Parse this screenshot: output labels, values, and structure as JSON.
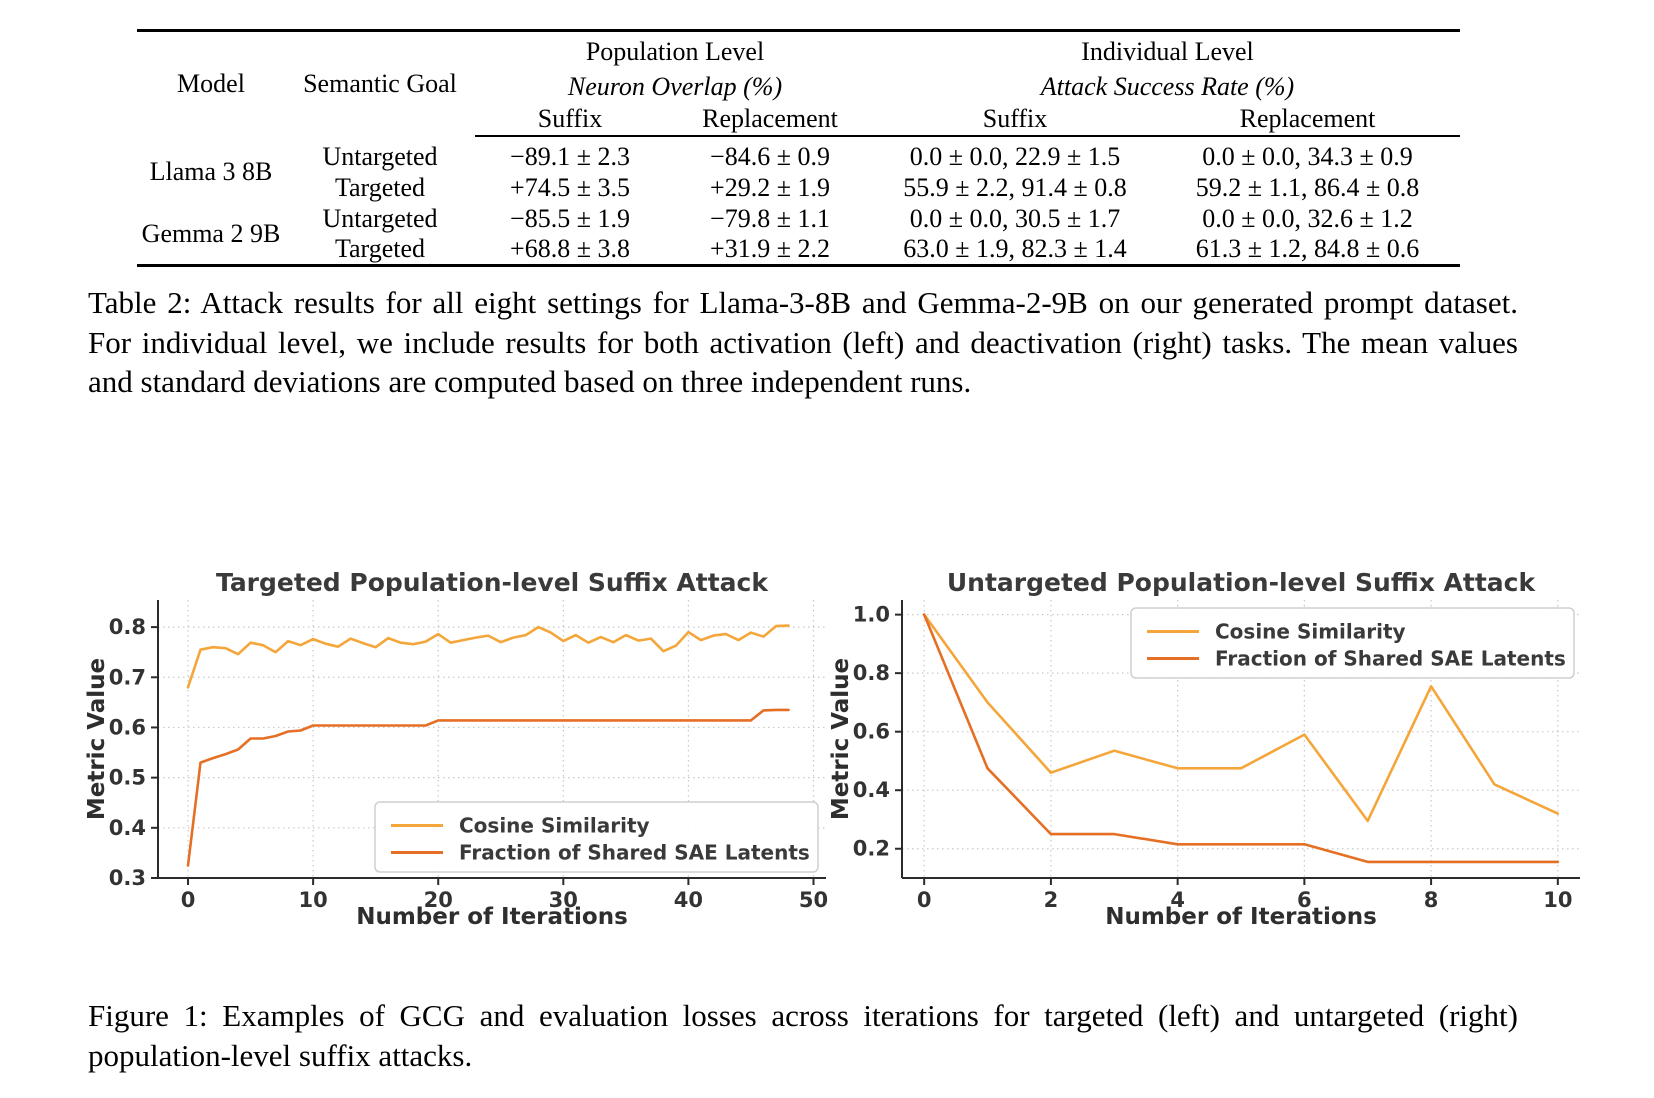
{
  "table": {
    "headers": {
      "model": "Model",
      "semantic_goal": "Semantic Goal",
      "group1_title": "Population Level",
      "group1_subtitle": "Neuron Overlap (%)",
      "group2_title": "Individual Level",
      "group2_subtitle": "Attack Success Rate (%)",
      "sub_suffix": "Suffix",
      "sub_replacement": "Replacement"
    },
    "rows": [
      {
        "model": "Llama 3 8B",
        "goal": "Untargeted",
        "pop_suffix": "−89.1 ± 2.3",
        "pop_replacement": "−84.6 ± 0.9",
        "ind_suffix": "0.0 ± 0.0, 22.9 ± 1.5",
        "ind_replacement": "0.0 ± 0.0, 34.3 ± 0.9"
      },
      {
        "goal": "Targeted",
        "pop_suffix": "+74.5 ± 3.5",
        "pop_replacement": "+29.2 ± 1.9",
        "ind_suffix": "55.9 ± 2.2, 91.4 ± 0.8",
        "ind_replacement": "59.2 ± 1.1, 86.4 ± 0.8"
      },
      {
        "model": "Gemma 2 9B",
        "goal": "Untargeted",
        "pop_suffix": "−85.5 ± 1.9",
        "pop_replacement": "−79.8 ± 1.1",
        "ind_suffix": "0.0 ± 0.0, 30.5 ± 1.7",
        "ind_replacement": "0.0 ± 0.0, 32.6 ± 1.2"
      },
      {
        "goal": "Targeted",
        "pop_suffix": "+68.8 ± 3.8",
        "pop_replacement": "+31.9 ± 2.2",
        "ind_suffix": "63.0 ± 1.9, 82.3 ± 1.4",
        "ind_replacement": "61.3 ± 1.2, 84.8 ± 0.6"
      }
    ],
    "caption": "Table 2: Attack results for all eight settings for Llama-3-8B and Gemma-2-9B on our generated prompt dataset. For individual level, we include results for both activation (left) and deactivation (right) tasks. The mean values and standard deviations are computed based on three independent runs."
  },
  "figure": {
    "caption": "Figure 1: Examples of GCG and evaluation losses across iterations for targeted (left) and untargeted (right) population-level suffix attacks."
  },
  "chart_data": [
    {
      "type": "line",
      "title": "Targeted Population-level Suffix Attack",
      "xlabel": "Number of Iterations",
      "ylabel": "Metric Value",
      "xlim": [
        -2.4,
        51
      ],
      "ylim": [
        0.3,
        0.854
      ],
      "xticks": [
        0,
        10,
        20,
        30,
        40,
        50
      ],
      "yticks": [
        0.3,
        0.4,
        0.5,
        0.6,
        0.7,
        0.8
      ],
      "ytick_decimals": 1,
      "grid": true,
      "legend_position": "lower right",
      "series": [
        {
          "name": "Cosine Similarity",
          "color": "#F4A63B",
          "x": [
            0,
            1,
            2,
            3,
            4,
            5,
            6,
            7,
            8,
            9,
            10,
            11,
            12,
            13,
            14,
            15,
            16,
            17,
            18,
            19,
            20,
            21,
            22,
            23,
            24,
            25,
            26,
            27,
            28,
            29,
            30,
            31,
            32,
            33,
            34,
            35,
            36,
            37,
            38,
            39,
            40,
            41,
            42,
            43,
            44,
            45,
            46,
            47,
            48
          ],
          "y": [
            0.68,
            0.755,
            0.76,
            0.758,
            0.746,
            0.769,
            0.764,
            0.75,
            0.772,
            0.764,
            0.776,
            0.767,
            0.761,
            0.777,
            0.768,
            0.76,
            0.778,
            0.769,
            0.766,
            0.771,
            0.786,
            0.769,
            0.774,
            0.779,
            0.783,
            0.77,
            0.779,
            0.784,
            0.8,
            0.789,
            0.772,
            0.784,
            0.769,
            0.78,
            0.77,
            0.784,
            0.773,
            0.777,
            0.752,
            0.763,
            0.79,
            0.774,
            0.783,
            0.786,
            0.774,
            0.789,
            0.781,
            0.802,
            0.803
          ]
        },
        {
          "name": "Fraction of Shared SAE Latents",
          "color": "#E56F24",
          "x": [
            0,
            1,
            2,
            3,
            4,
            5,
            6,
            7,
            8,
            9,
            10,
            11,
            12,
            13,
            14,
            15,
            16,
            17,
            18,
            19,
            20,
            21,
            22,
            23,
            24,
            25,
            26,
            27,
            28,
            29,
            30,
            31,
            32,
            33,
            34,
            35,
            36,
            37,
            38,
            39,
            40,
            41,
            42,
            43,
            44,
            45,
            46,
            47,
            48
          ],
          "y": [
            0.325,
            0.53,
            0.539,
            0.547,
            0.556,
            0.578,
            0.578,
            0.583,
            0.592,
            0.594,
            0.604,
            0.604,
            0.604,
            0.604,
            0.604,
            0.604,
            0.604,
            0.604,
            0.604,
            0.604,
            0.614,
            0.614,
            0.614,
            0.614,
            0.614,
            0.614,
            0.614,
            0.614,
            0.614,
            0.614,
            0.614,
            0.614,
            0.614,
            0.614,
            0.614,
            0.614,
            0.614,
            0.614,
            0.614,
            0.614,
            0.614,
            0.614,
            0.614,
            0.614,
            0.614,
            0.614,
            0.634,
            0.635,
            0.635
          ]
        }
      ]
    },
    {
      "type": "line",
      "title": "Untargeted Population-level Suffix Attack",
      "xlabel": "Number of Iterations",
      "ylabel": "Metric Value",
      "xlim": [
        -0.35,
        10.35
      ],
      "ylim": [
        0.1,
        1.05
      ],
      "xticks": [
        0,
        2,
        4,
        6,
        8,
        10
      ],
      "yticks": [
        0.2,
        0.4,
        0.6,
        0.8,
        1.0
      ],
      "ytick_decimals": 1,
      "grid": true,
      "legend_position": "upper right",
      "series": [
        {
          "name": "Cosine Similarity",
          "color": "#F4A63B",
          "x": [
            0,
            1,
            2,
            3,
            4,
            5,
            6,
            7,
            8,
            9,
            10
          ],
          "y": [
            1.0,
            0.7,
            0.46,
            0.535,
            0.475,
            0.475,
            0.59,
            0.295,
            0.755,
            0.42,
            0.32
          ]
        },
        {
          "name": "Fraction of Shared SAE Latents",
          "color": "#E56F24",
          "x": [
            0,
            1,
            2,
            3,
            4,
            5,
            6,
            7,
            8,
            9,
            10
          ],
          "y": [
            1.0,
            0.475,
            0.25,
            0.25,
            0.215,
            0.215,
            0.215,
            0.155,
            0.155,
            0.155,
            0.155
          ]
        }
      ]
    }
  ]
}
